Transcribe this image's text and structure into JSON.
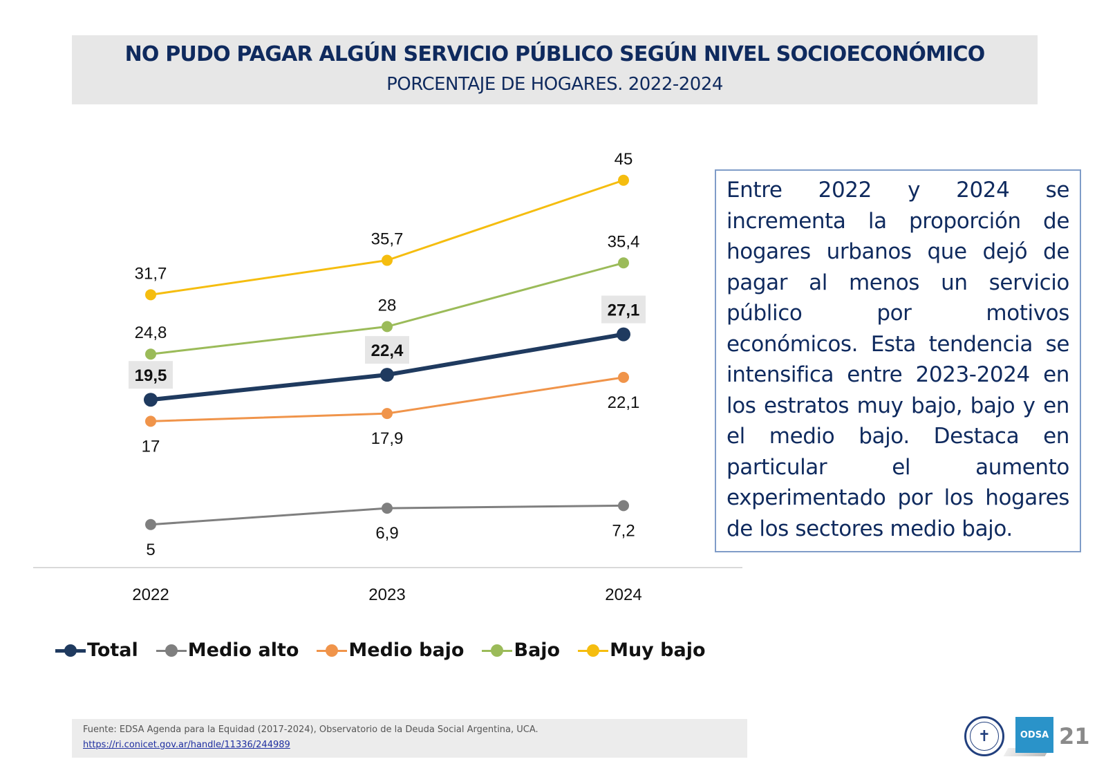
{
  "header": {
    "title": "NO PUDO PAGAR ALGÚN SERVICIO PÚBLICO SEGÚN NIVEL SOCIOECONÓMICO",
    "subtitle": "PORCENTAJE DE HOGARES. 2022-2024"
  },
  "chart_data": {
    "type": "line",
    "title": "NO PUDO PAGAR ALGÚN SERVICIO PÚBLICO SEGÚN NIVEL SOCIOECONÓMICO",
    "subtitle": "PORCENTAJE DE HOGARES. 2022-2024",
    "xlabel": "",
    "ylabel": "",
    "categories": [
      "2022",
      "2023",
      "2024"
    ],
    "ylim": [
      0,
      45
    ],
    "grid": false,
    "legend_position": "bottom",
    "series": [
      {
        "name": "Total",
        "color": "#1f3a5f",
        "emphasis": true,
        "values": [
          19.5,
          22.4,
          27.1
        ],
        "labels": [
          "19,5",
          "22,4",
          "27,1"
        ],
        "label_position": "above"
      },
      {
        "name": "Medio alto",
        "color": "#7f7f7f",
        "values": [
          5,
          6.9,
          7.2
        ],
        "labels": [
          "5",
          "6,9",
          "7,2"
        ],
        "label_position": "below"
      },
      {
        "name": "Medio bajo",
        "color": "#f0944a",
        "values": [
          17,
          17.9,
          22.1
        ],
        "labels": [
          "17",
          "17,9",
          "22,1"
        ],
        "label_position": "below"
      },
      {
        "name": "Bajo",
        "color": "#9bbb59",
        "values": [
          24.8,
          28,
          35.4
        ],
        "labels": [
          "24,8",
          "28",
          "35,4"
        ],
        "label_position": "above"
      },
      {
        "name": "Muy bajo",
        "color": "#f5bd0f",
        "values": [
          31.7,
          35.7,
          45
        ],
        "labels": [
          "31,7",
          "35,7",
          "45"
        ],
        "label_position": "above"
      }
    ]
  },
  "commentary": {
    "text": "Entre 2022 y 2024 se incrementa la proporción de hogares urbanos que dejó de pagar al menos un servicio público por motivos económicos. Esta tendencia se intensifica entre 2023-2024 en los estratos muy bajo, bajo y en el medio bajo.  Destaca en particular el aumento experimentado por los hogares de los sectores medio bajo."
  },
  "footer": {
    "source": "Fuente: EDSA Agenda para la Equidad (2017-2024), Observatorio de la Deuda Social Argentina, UCA.",
    "link": "https://ri.conicet.gov.ar/handle/11336/244989",
    "seal_icon": "university-seal-icon",
    "odsa_logo": "ODSA",
    "page_number": "21"
  }
}
